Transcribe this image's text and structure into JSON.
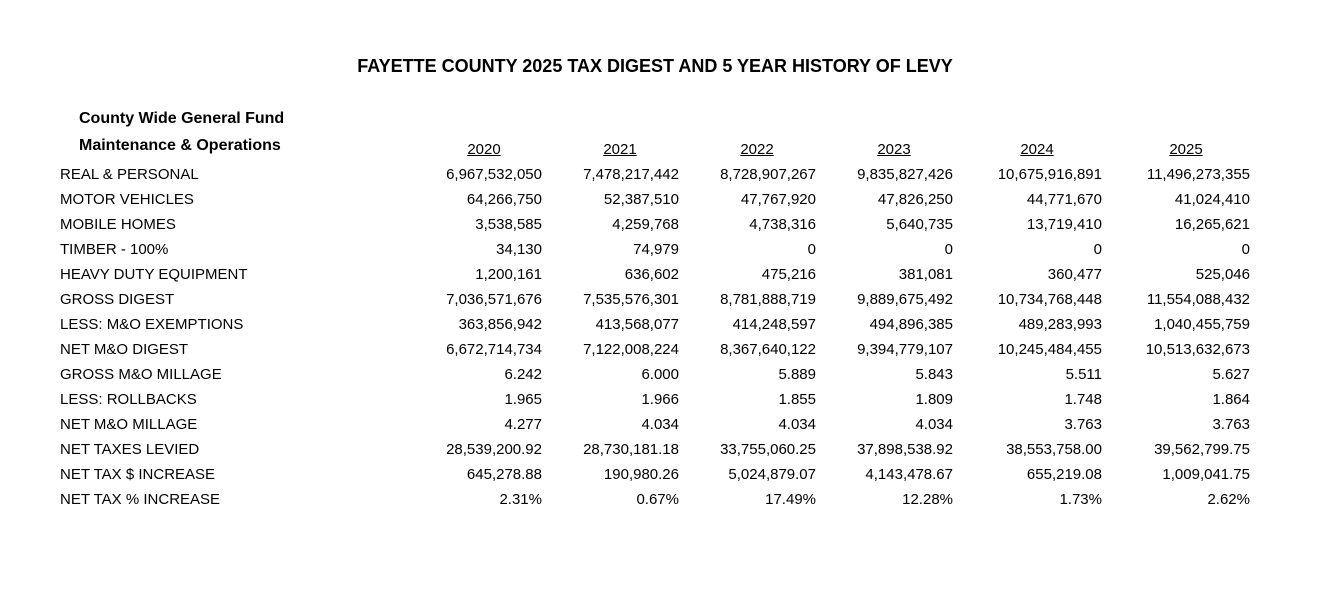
{
  "title": "FAYETTE COUNTY  2025 TAX DIGEST AND 5 YEAR HISTORY OF LEVY",
  "subtitle_line1": "County Wide General Fund",
  "subtitle_line2": "Maintenance & Operations",
  "years": [
    "2020",
    "2021",
    "2022",
    "2023",
    "2024",
    "2025"
  ],
  "rows": [
    {
      "label": "REAL & PERSONAL",
      "values": [
        "6,967,532,050",
        "7,478,217,442",
        "8,728,907,267",
        "9,835,827,426",
        "10,675,916,891",
        "11,496,273,355"
      ]
    },
    {
      "label": "MOTOR VEHICLES",
      "values": [
        "64,266,750",
        "52,387,510",
        "47,767,920",
        "47,826,250",
        "44,771,670",
        "41,024,410"
      ]
    },
    {
      "label": "MOBILE HOMES",
      "values": [
        "3,538,585",
        "4,259,768",
        "4,738,316",
        "5,640,735",
        "13,719,410",
        "16,265,621"
      ]
    },
    {
      "label": "TIMBER - 100%",
      "values": [
        "34,130",
        "74,979",
        "0",
        "0",
        "0",
        "0"
      ]
    },
    {
      "label": "HEAVY DUTY EQUIPMENT",
      "values": [
        "1,200,161",
        "636,602",
        "475,216",
        "381,081",
        "360,477",
        "525,046"
      ]
    },
    {
      "label": "GROSS DIGEST",
      "values": [
        "7,036,571,676",
        "7,535,576,301",
        "8,781,888,719",
        "9,889,675,492",
        "10,734,768,448",
        "11,554,088,432"
      ]
    },
    {
      "label": "LESS: M&O EXEMPTIONS",
      "values": [
        "363,856,942",
        "413,568,077",
        "414,248,597",
        "494,896,385",
        "489,283,993",
        "1,040,455,759"
      ]
    },
    {
      "label": "NET M&O DIGEST",
      "values": [
        "6,672,714,734",
        "7,122,008,224",
        "8,367,640,122",
        "9,394,779,107",
        "10,245,484,455",
        "10,513,632,673"
      ]
    },
    {
      "label": "GROSS M&O MILLAGE",
      "values": [
        "6.242",
        "6.000",
        "5.889",
        "5.843",
        "5.511",
        "5.627"
      ]
    },
    {
      "label": "LESS: ROLLBACKS",
      "values": [
        "1.965",
        "1.966",
        "1.855",
        "1.809",
        "1.748",
        "1.864"
      ]
    },
    {
      "label": "NET M&O MILLAGE",
      "values": [
        "4.277",
        "4.034",
        "4.034",
        "4.034",
        "3.763",
        "3.763"
      ]
    },
    {
      "label": "NET TAXES LEVIED",
      "values": [
        "28,539,200.92",
        "28,730,181.18",
        "33,755,060.25",
        "37,898,538.92",
        "38,553,758.00",
        "39,562,799.75"
      ]
    },
    {
      "label": "NET TAX $ INCREASE",
      "values": [
        "645,278.88",
        "190,980.26",
        "5,024,879.07",
        "4,143,478.67",
        "655,219.08",
        "1,009,041.75"
      ]
    },
    {
      "label": "NET TAX % INCREASE",
      "values": [
        "2.31%",
        "0.67%",
        "17.49%",
        "12.28%",
        "1.73%",
        "2.62%"
      ]
    }
  ]
}
